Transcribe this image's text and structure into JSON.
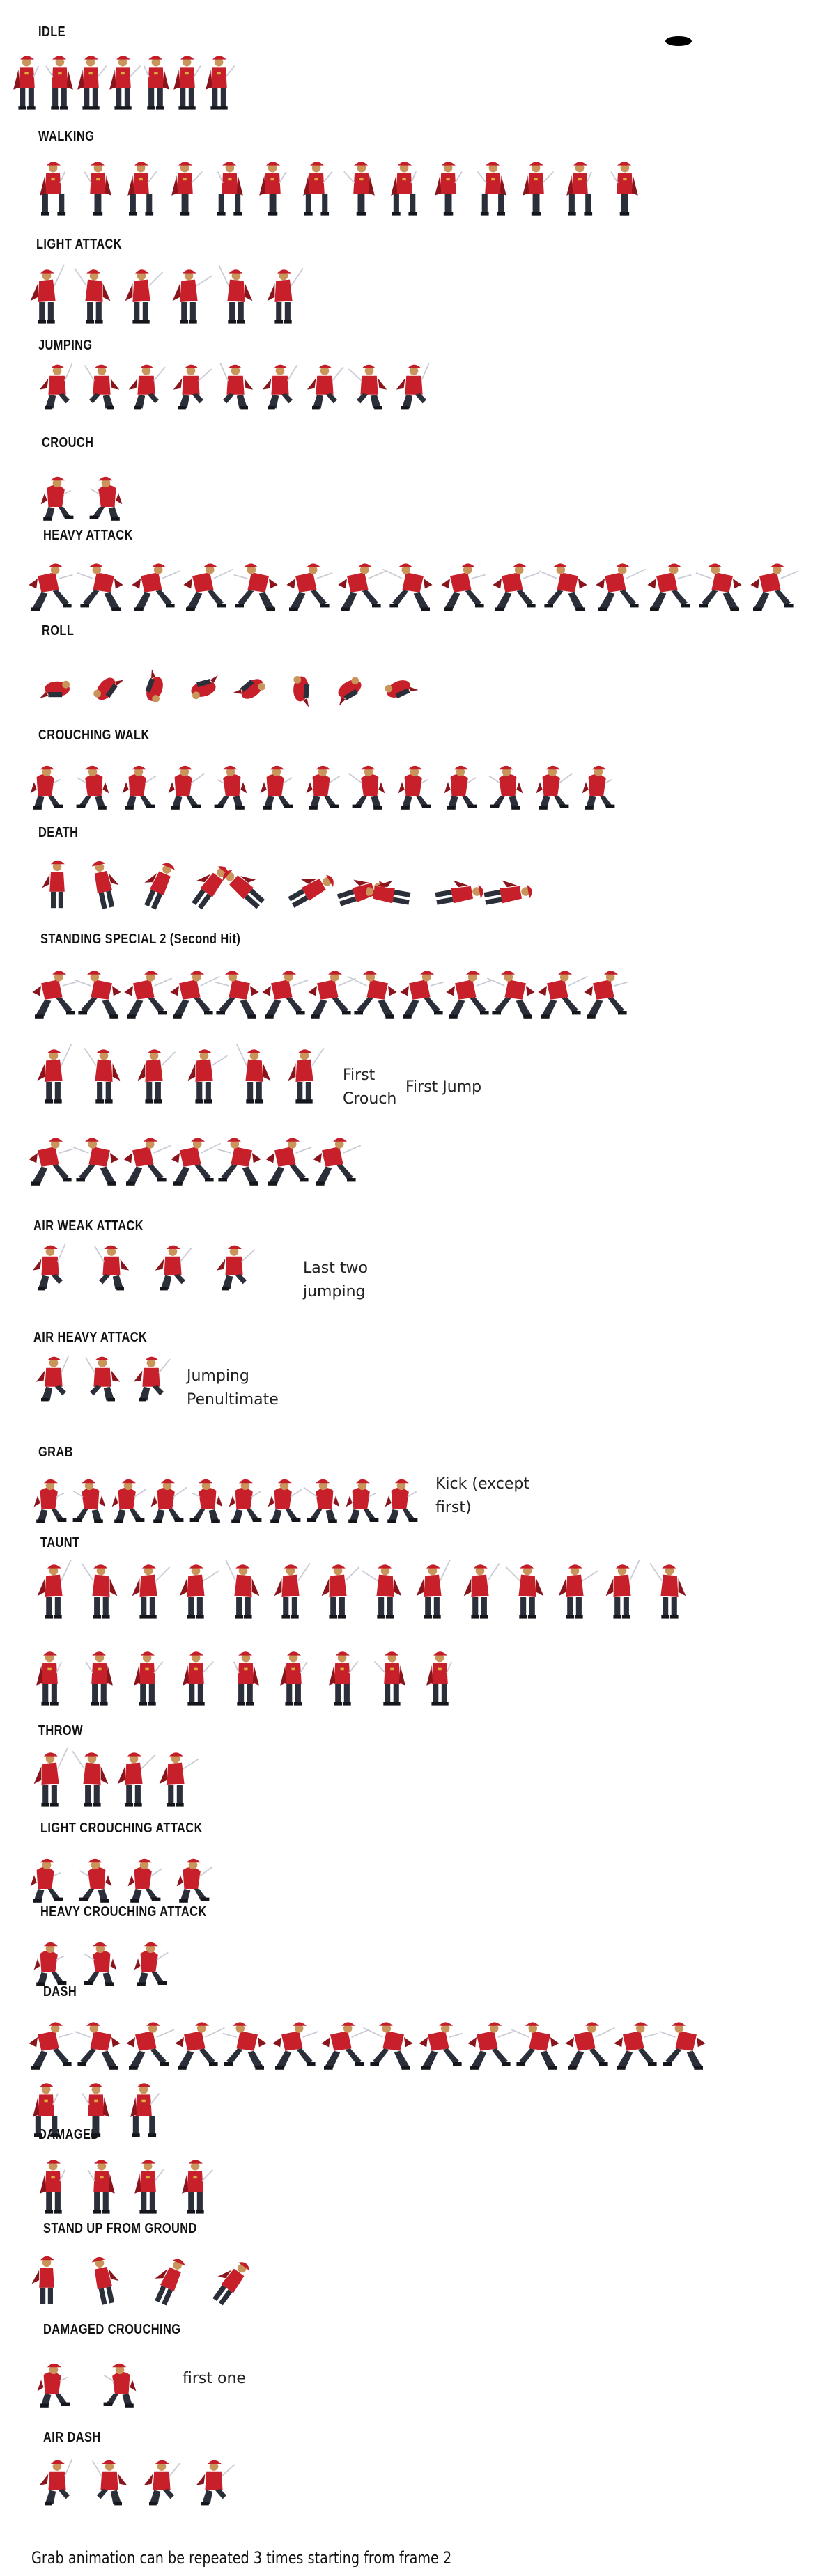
{
  "sections": {
    "idle": "IDLE",
    "walking": "WALKING",
    "light_attack": "LIGHT ATTACK",
    "jumping": "JUMPING",
    "crouch": "CROUCH",
    "heavy_attack": "HEAVY ATTACK",
    "roll": "ROLL",
    "crouching_walk": "CROUCHING WALK",
    "death": "DEATH",
    "standing_special_2": "STANDING SPECIAL 2 (Second Hit)",
    "air_weak_attack": "AIR WEAK ATTACK",
    "air_heavy_attack": "AIR HEAVY ATTACK",
    "grab": "GRAB",
    "taunt": "TAUNT",
    "throw": "THROW",
    "light_crouching_attack": "LIGHT CROUCHING ATTACK",
    "heavy_crouching_attack": "HEAVY CROUCHING ATTACK",
    "dash": "DASH",
    "damaged": "DAMAGED",
    "stand_up_from_ground": "STAND UP FROM GROUND",
    "damaged_crouching": "DAMAGED CROUCHING",
    "air_dash": "AIR DASH"
  },
  "notes": {
    "first_crouch": "First\nCrouch",
    "first_jump": "First Jump",
    "last_two_jumping": "Last two\njumping",
    "jumping_penultimate": "Jumping\nPenultimate",
    "kick_except_first": "Kick (except\nfirst)",
    "first_one": "first one"
  },
  "footer": "Grab animation can be repeated 3 times starting from frame 2",
  "colors": {
    "coat": "#c8202a",
    "coat_dark": "#8a141b",
    "hat": "#c41f28",
    "skin": "#c9955a",
    "pants": "#2b2f3a",
    "boots": "#14161c",
    "blade": "#c9ccd6",
    "trail": "#b9bcd8",
    "gold": "#d8b03a"
  },
  "frames": {
    "idle": 7,
    "walking": 14,
    "light_attack": 6,
    "jumping": 9,
    "crouch": 2,
    "heavy_attack": 15,
    "roll": 8,
    "crouching_walk": 13,
    "death": 10,
    "standing_special_2": 13,
    "standing_special_2_row2": 6,
    "standing_special_2_row3": 7,
    "air_weak_attack": 4,
    "air_heavy_attack": 3,
    "grab": 10,
    "taunt_row1": 14,
    "taunt_row2": 9,
    "throw": 4,
    "light_crouching_attack": 4,
    "heavy_crouching_attack": 3,
    "dash_row1": 14,
    "dash_row2": 3,
    "damaged": 4,
    "stand_up_from_ground": 4,
    "damaged_crouching": 2,
    "air_dash": 4
  }
}
